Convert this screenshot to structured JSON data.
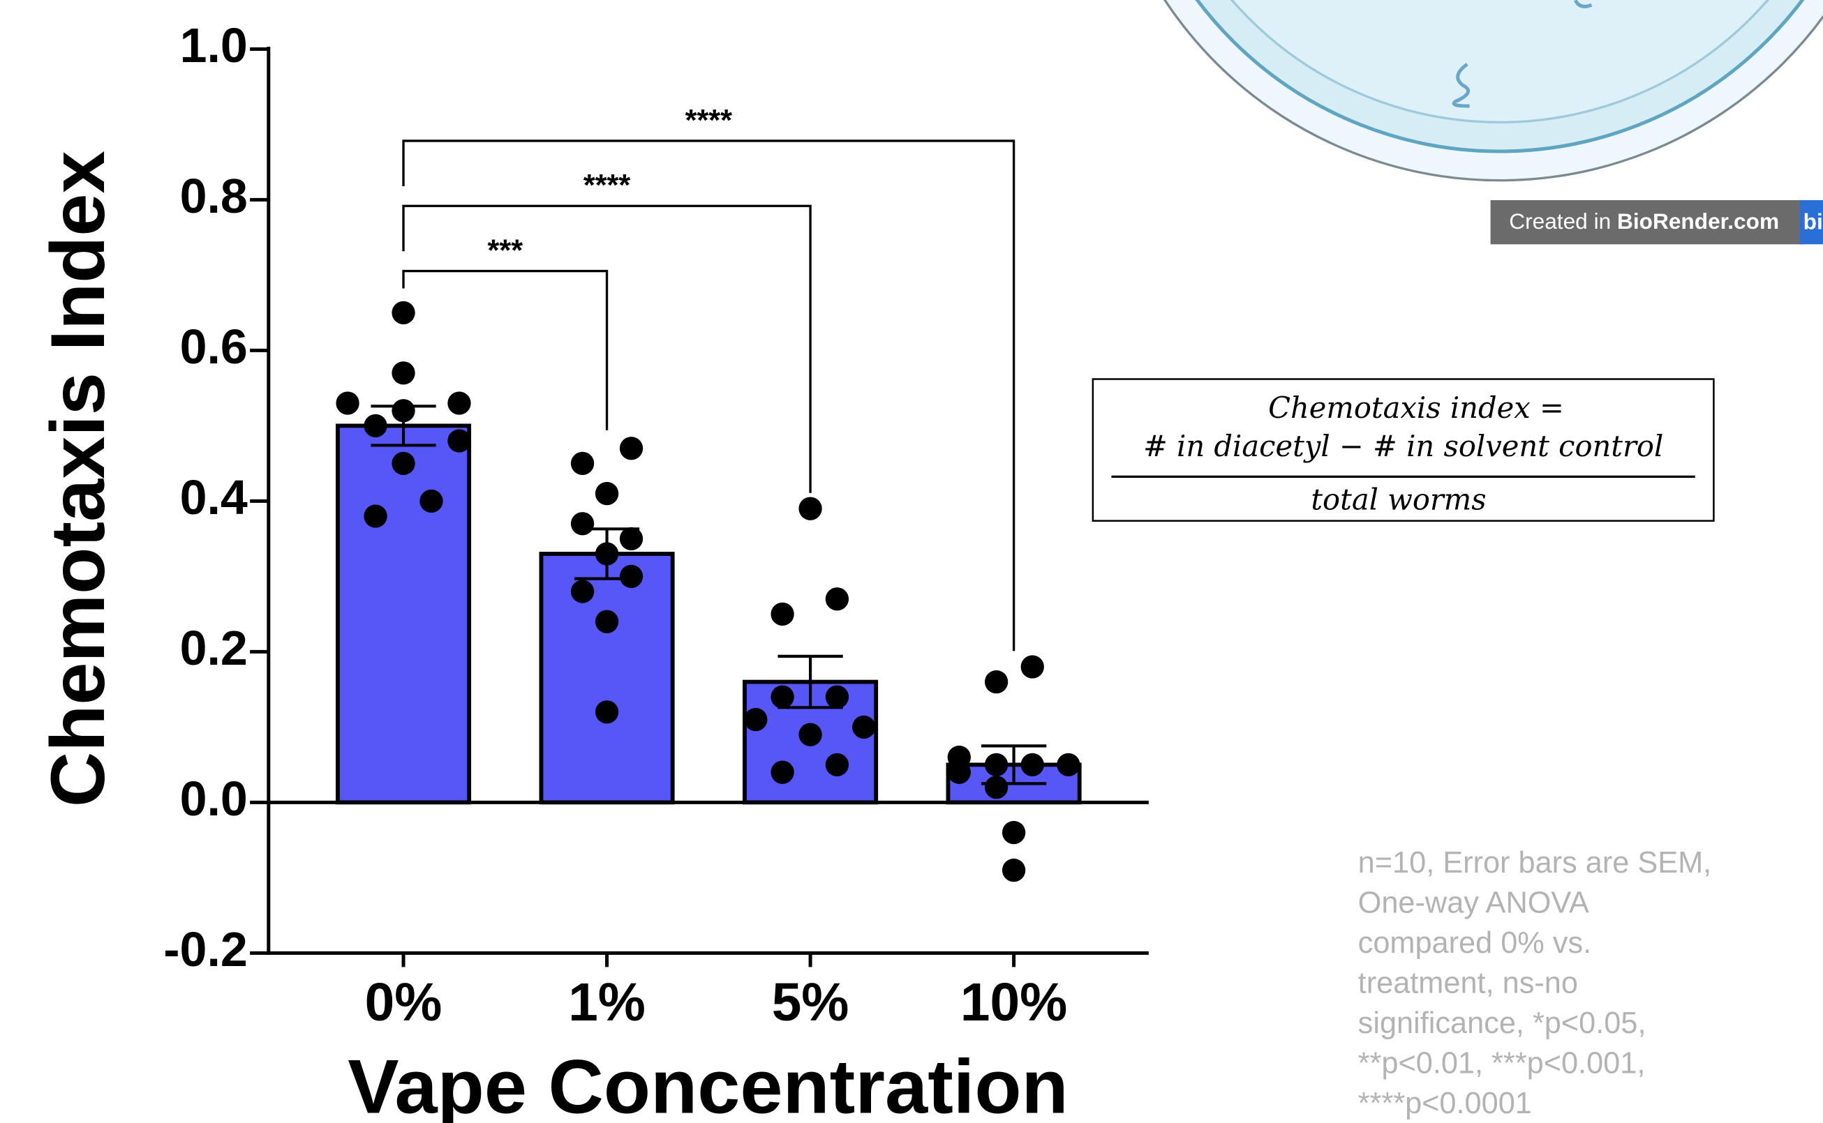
{
  "chart_data": {
    "type": "bar",
    "y_label": "Chemotaxis Index",
    "x_label": "Vape Concentration",
    "categories": [
      "0%",
      "1%",
      "5%",
      "10%"
    ],
    "values": [
      0.5,
      0.33,
      0.16,
      0.05
    ],
    "errors": [
      0.026,
      0.033,
      0.034,
      0.025
    ],
    "color": "#5757f8",
    "points": [
      [
        0.65,
        0.57,
        0.53,
        0.53,
        0.52,
        0.5,
        0.48,
        0.45,
        0.4,
        0.38
      ],
      [
        0.45,
        0.47,
        0.41,
        0.37,
        0.35,
        0.33,
        0.28,
        0.3,
        0.24,
        0.12
      ],
      [
        0.39,
        0.27,
        0.25,
        0.14,
        0.11,
        0.14,
        0.09,
        0.1,
        0.05,
        0.04
      ],
      [
        0.16,
        0.18,
        0.06,
        0.04,
        0.05,
        0.05,
        0.05,
        0.02,
        -0.04,
        -0.09
      ]
    ],
    "comparisons": [
      {
        "groups": [
          "0%",
          "1%"
        ],
        "label": "***"
      },
      {
        "groups": [
          "0%",
          "5%"
        ],
        "label": "****"
      },
      {
        "groups": [
          "0%",
          "10%"
        ],
        "label": "****"
      }
    ],
    "ylim": [
      -0.2,
      1.0
    ],
    "yticks": [
      -0.2,
      {
        "value": 0,
        "label": "0.0"
      },
      0.2,
      0.4,
      0.6,
      0.8,
      {
        "value": 1,
        "label": "1.0"
      }
    ]
  },
  "formula": {
    "lhs": "Chemotaxis index =",
    "numerator": "# in diacetyl − # in solvent control",
    "denominator": "total worms"
  },
  "note": [
    "n=10, Error bars are SEM,",
    "One-way ANOVA",
    "compared 0% vs.",
    "treatment, ns-no",
    "significance, *p<0.05,",
    "**p<0.01, ***p<0.001,",
    "****p<0.0001"
  ],
  "badge": {
    "prefix": "Created in ",
    "brand": "BioRender.com",
    "tail": "bi"
  }
}
